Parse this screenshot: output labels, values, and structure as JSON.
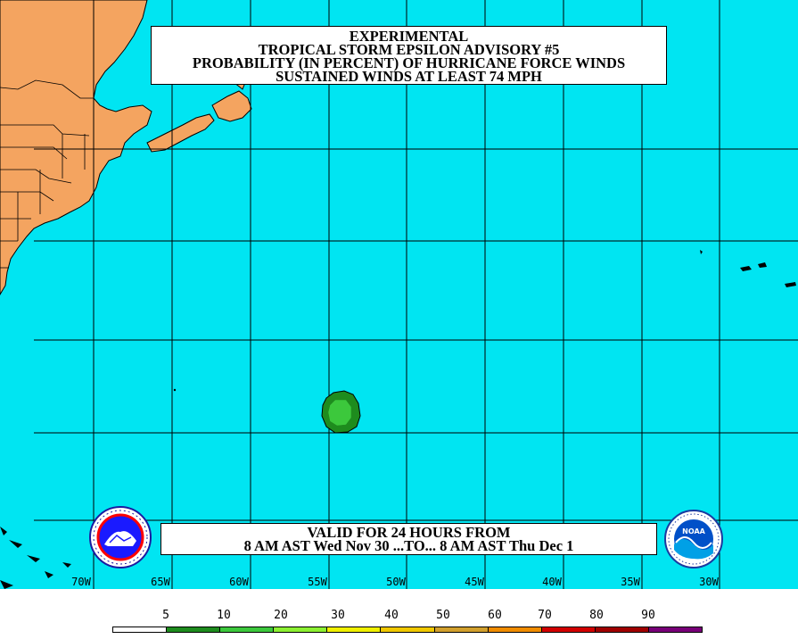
{
  "title": {
    "line1": "EXPERIMENTAL",
    "line2": "TROPICAL STORM EPSILON ADVISORY #5",
    "line3": "PROBABILITY (IN PERCENT) OF HURRICANE FORCE WINDS",
    "line4": "SUSTAINED WINDS AT LEAST 74 MPH"
  },
  "valid": {
    "line1": "VALID FOR 24 HOURS FROM",
    "line2": "8 AM AST Wed Nov 30 ...TO... 8 AM AST Thu Dec 1"
  },
  "longitude_labels": [
    "70W",
    "65W",
    "60W",
    "55W",
    "50W",
    "45W",
    "40W",
    "35W",
    "30W"
  ],
  "legend": {
    "labels": [
      "5",
      "10",
      "20",
      "30",
      "40",
      "50",
      "60",
      "70",
      "80",
      "90"
    ],
    "colors": [
      "#ffffff",
      "#1e8c1e",
      "#3cc83c",
      "#8cf032",
      "#f0f000",
      "#f0c800",
      "#d2a02d",
      "#f08c00",
      "#d20000",
      "#a00000",
      "#780078"
    ]
  },
  "colors": {
    "ocean": "#00e5f2",
    "land": "#f4a460",
    "probability_outer": "#1e8c1e",
    "probability_inner": "#3cc83c"
  },
  "logos": {
    "left": "nws-logo-icon",
    "right": "noaa-logo-icon",
    "right_text": "NOAA"
  }
}
